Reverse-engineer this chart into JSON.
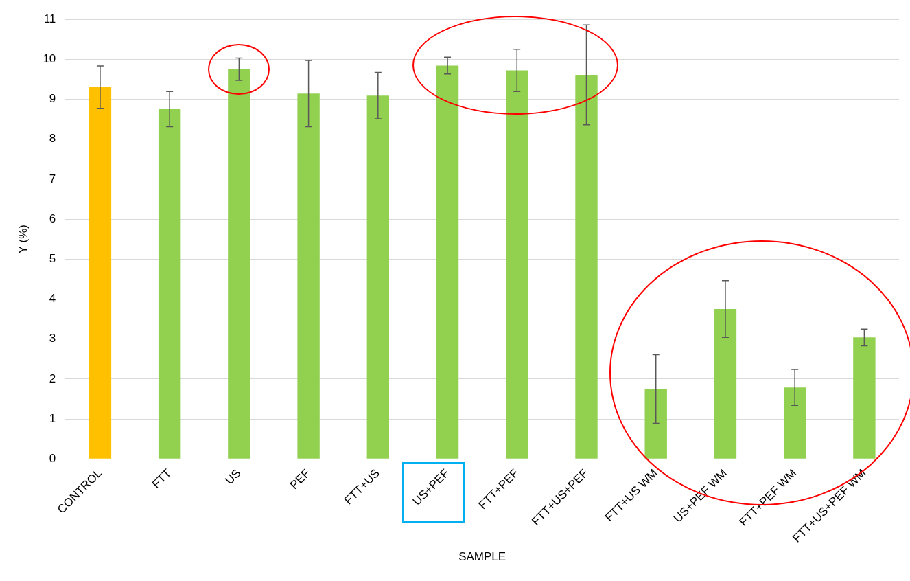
{
  "chart_data": {
    "type": "bar",
    "xlabel": "SAMPLE",
    "ylabel": "Y (%)",
    "categories": [
      "CONTROL",
      "FTT",
      "US",
      "PEF",
      "FTT+US",
      "US+PEF",
      "FTT+PEF",
      "FTT+US+PEF",
      "FTT+US WM",
      "US+PEF WM",
      "FTT+PEF WM",
      "FTT+US+PEF WM"
    ],
    "values": [
      9.3,
      8.75,
      9.75,
      9.14,
      9.09,
      9.84,
      9.72,
      9.61,
      1.75,
      3.75,
      1.79,
      3.04
    ],
    "colors": [
      "#ffc000",
      "#92d050",
      "#92d050",
      "#92d050",
      "#92d050",
      "#92d050",
      "#92d050",
      "#92d050",
      "#92d050",
      "#92d050",
      "#92d050",
      "#92d050"
    ],
    "errors": [
      0.53,
      0.44,
      0.28,
      0.83,
      0.58,
      0.21,
      0.53,
      1.25,
      0.86,
      0.71,
      0.45,
      0.21
    ],
    "ylim": [
      0,
      11
    ],
    "yticks": [
      0,
      1,
      2,
      3,
      4,
      5,
      6,
      7,
      8,
      9,
      10,
      11
    ],
    "grid": "y",
    "legend": false
  }
}
